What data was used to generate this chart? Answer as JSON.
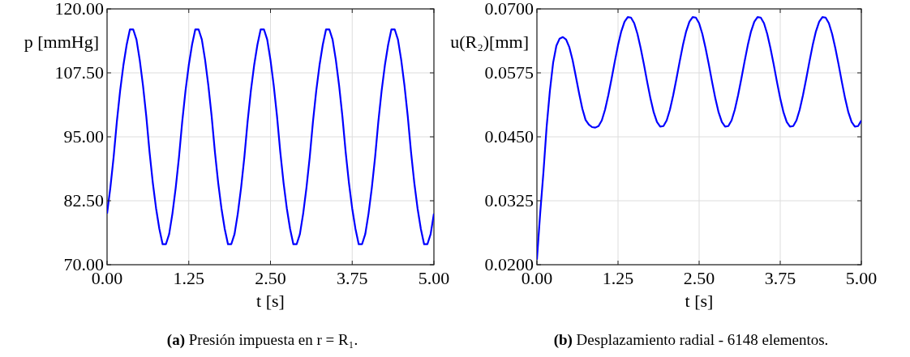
{
  "chart_data": [
    {
      "type": "line",
      "xlabel": "t [s]",
      "ylabel": "p [mmHg]",
      "grid": true,
      "annotations": [
        "(a) Presión impuesta en r = R₁."
      ],
      "xlim": [
        0,
        5
      ],
      "xticks": [
        {
          "value": 0,
          "label": "0.00"
        },
        {
          "value": 1.25,
          "label": "1.25"
        },
        {
          "value": 2.5,
          "label": "2.50"
        },
        {
          "value": 3.75,
          "label": "3.75"
        },
        {
          "value": 5,
          "label": "5.00"
        }
      ],
      "ylim": [
        70,
        120
      ],
      "yticks": [
        {
          "value": 70,
          "label": "70.00"
        },
        {
          "value": 82.5,
          "label": "82.50"
        },
        {
          "value": 95,
          "label": "95.00"
        },
        {
          "value": 107.5,
          "label": "107.50"
        },
        {
          "value": 120,
          "label": "120.00"
        }
      ],
      "x": [
        0,
        0.05,
        0.1,
        0.15,
        0.2,
        0.25,
        0.3,
        0.35,
        0.4,
        0.45,
        0.5,
        0.55,
        0.6,
        0.65,
        0.7,
        0.75,
        0.8,
        0.85,
        0.9,
        0.95,
        1,
        1.05,
        1.1,
        1.15,
        1.2,
        1.25,
        1.3,
        1.35,
        1.4,
        1.45,
        1.5,
        1.55,
        1.6,
        1.65,
        1.7,
        1.75,
        1.8,
        1.85,
        1.9,
        1.95,
        2,
        2.05,
        2.1,
        2.15,
        2.2,
        2.25,
        2.3,
        2.35,
        2.4,
        2.45,
        2.5,
        2.55,
        2.6,
        2.65,
        2.7,
        2.75,
        2.8,
        2.85,
        2.9,
        2.95,
        3,
        3.05,
        3.1,
        3.15,
        3.2,
        3.25,
        3.3,
        3.35,
        3.4,
        3.45,
        3.5,
        3.55,
        3.6,
        3.65,
        3.7,
        3.75,
        3.8,
        3.85,
        3.9,
        3.95,
        4,
        4.05,
        4.1,
        4.15,
        4.2,
        4.25,
        4.3,
        4.35,
        4.4,
        4.45,
        4.5,
        4.55,
        4.6,
        4.65,
        4.7,
        4.75,
        4.8,
        4.85,
        4.9,
        4.95,
        5
      ],
      "series": [
        {
          "color": "#0000ff",
          "values": [
            80,
            85,
            91,
            98,
            104,
            109,
            113,
            116,
            116,
            114,
            110,
            105,
            99,
            92,
            86,
            81,
            77,
            74,
            74,
            76,
            80,
            85,
            91,
            98,
            104,
            109,
            113,
            116,
            116,
            114,
            110,
            105,
            99,
            92,
            86,
            81,
            77,
            74,
            74,
            76,
            80,
            85,
            91,
            98,
            104,
            109,
            113,
            116,
            116,
            114,
            110,
            105,
            99,
            92,
            86,
            81,
            77,
            74,
            74,
            76,
            80,
            85,
            91,
            98,
            104,
            109,
            113,
            116,
            116,
            114,
            110,
            105,
            99,
            92,
            86,
            81,
            77,
            74,
            74,
            76,
            80,
            85,
            91,
            98,
            104,
            109,
            113,
            116,
            116,
            114,
            110,
            105,
            99,
            92,
            86,
            81,
            77,
            74,
            74,
            76,
            80
          ]
        }
      ]
    },
    {
      "type": "line",
      "xlabel": "t [s]",
      "ylabel": "u(R₂)[mm]",
      "grid": true,
      "annotations": [
        "(b) Desplazamiento radial - 6148 elementos."
      ],
      "xlim": [
        0,
        5
      ],
      "xticks": [
        {
          "value": 0,
          "label": "0.00"
        },
        {
          "value": 1.25,
          "label": "1.25"
        },
        {
          "value": 2.5,
          "label": "2.50"
        },
        {
          "value": 3.75,
          "label": "3.75"
        },
        {
          "value": 5,
          "label": "5.00"
        }
      ],
      "ylim": [
        0.02,
        0.07
      ],
      "yticks": [
        {
          "value": 0.02,
          "label": "0.0200"
        },
        {
          "value": 0.0325,
          "label": "0.0325"
        },
        {
          "value": 0.045,
          "label": "0.0450"
        },
        {
          "value": 0.0575,
          "label": "0.0575"
        },
        {
          "value": 0.07,
          "label": "0.0700"
        }
      ],
      "x": [
        0,
        0.05,
        0.1,
        0.15,
        0.2,
        0.25,
        0.3,
        0.35,
        0.4,
        0.45,
        0.5,
        0.55,
        0.6,
        0.65,
        0.7,
        0.75,
        0.8,
        0.85,
        0.9,
        0.95,
        1,
        1.05,
        1.1,
        1.15,
        1.2,
        1.25,
        1.3,
        1.35,
        1.4,
        1.45,
        1.5,
        1.55,
        1.6,
        1.65,
        1.7,
        1.75,
        1.8,
        1.85,
        1.9,
        1.95,
        2,
        2.05,
        2.1,
        2.15,
        2.2,
        2.25,
        2.3,
        2.35,
        2.4,
        2.45,
        2.5,
        2.55,
        2.6,
        2.65,
        2.7,
        2.75,
        2.8,
        2.85,
        2.9,
        2.95,
        3,
        3.05,
        3.1,
        3.15,
        3.2,
        3.25,
        3.3,
        3.35,
        3.4,
        3.45,
        3.5,
        3.55,
        3.6,
        3.65,
        3.7,
        3.75,
        3.8,
        3.85,
        3.9,
        3.95,
        4,
        4.05,
        4.1,
        4.15,
        4.2,
        4.25,
        4.3,
        4.35,
        4.4,
        4.45,
        4.5,
        4.55,
        4.6,
        4.65,
        4.7,
        4.75,
        4.8,
        4.85,
        4.9,
        4.95,
        5
      ],
      "series": [
        {
          "color": "#0000ff",
          "values": [
            0.021,
            0.03,
            0.038,
            0.047,
            0.054,
            0.0595,
            0.0628,
            0.0642,
            0.0645,
            0.064,
            0.0625,
            0.06,
            0.0568,
            0.0535,
            0.0505,
            0.0483,
            0.0474,
            0.0469,
            0.0468,
            0.0471,
            0.0482,
            0.0503,
            0.0531,
            0.0563,
            0.0597,
            0.0629,
            0.0656,
            0.0675,
            0.0684,
            0.0683,
            0.0672,
            0.0651,
            0.0623,
            0.0591,
            0.0557,
            0.0525,
            0.0498,
            0.0479,
            0.047,
            0.0471,
            0.0482,
            0.0503,
            0.0531,
            0.0563,
            0.0597,
            0.0629,
            0.0656,
            0.0675,
            0.0684,
            0.0683,
            0.0672,
            0.0651,
            0.0623,
            0.0591,
            0.0557,
            0.0525,
            0.0498,
            0.0479,
            0.047,
            0.0471,
            0.0482,
            0.0503,
            0.0531,
            0.0563,
            0.0597,
            0.0629,
            0.0656,
            0.0675,
            0.0684,
            0.0683,
            0.0672,
            0.0651,
            0.0623,
            0.0591,
            0.0557,
            0.0525,
            0.0498,
            0.0479,
            0.047,
            0.0471,
            0.0482,
            0.0503,
            0.0531,
            0.0563,
            0.0597,
            0.0629,
            0.0656,
            0.0675,
            0.0684,
            0.0683,
            0.0672,
            0.0651,
            0.0623,
            0.0591,
            0.0557,
            0.0525,
            0.0498,
            0.0479,
            0.047,
            0.0471,
            0.0482
          ]
        }
      ]
    }
  ]
}
